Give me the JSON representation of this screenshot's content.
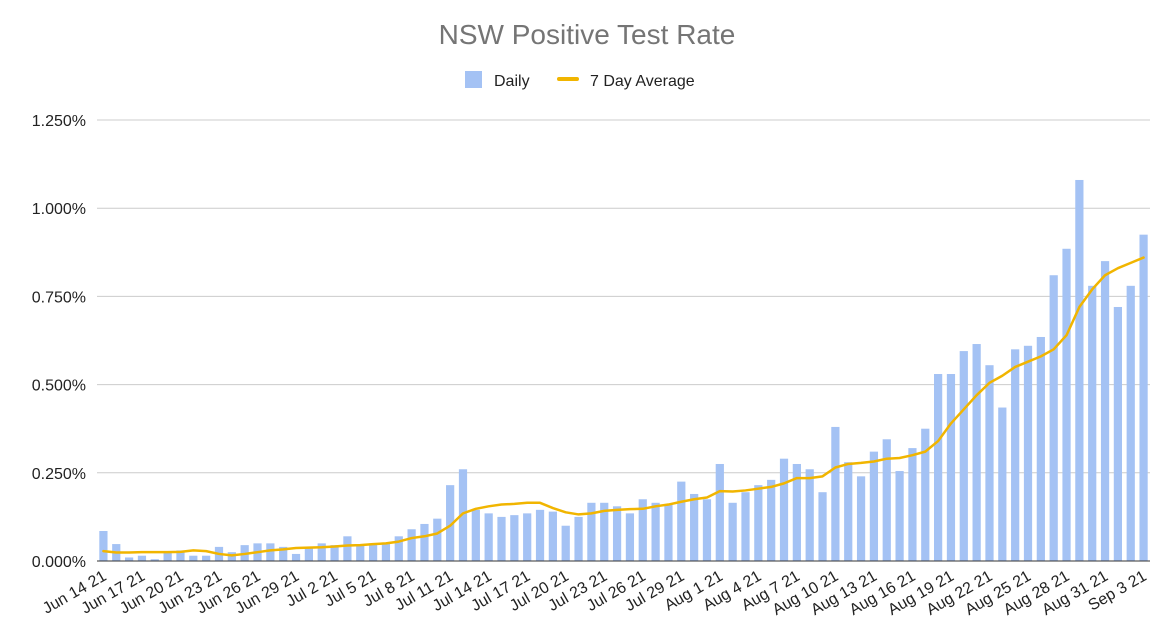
{
  "chart_data": {
    "type": "bar",
    "title": "NSW Positive Test Rate",
    "xlabel": "",
    "ylabel": "",
    "ylim": [
      0,
      1.25
    ],
    "yticks": [
      "0.000%",
      "0.250%",
      "0.500%",
      "0.750%",
      "1.000%",
      "1.250%"
    ],
    "ytick_values": [
      0,
      0.25,
      0.5,
      0.75,
      1.0,
      1.25
    ],
    "grid": true,
    "legend_position": "top-center",
    "colors": {
      "daily": "#a4c2f4",
      "avg": "#f1b500",
      "grid": "#cccccc",
      "axis": "#333333"
    },
    "categories": [
      "Jun 14 21",
      "Jun 15 21",
      "Jun 16 21",
      "Jun 17 21",
      "Jun 18 21",
      "Jun 19 21",
      "Jun 20 21",
      "Jun 21 21",
      "Jun 22 21",
      "Jun 23 21",
      "Jun 24 21",
      "Jun 25 21",
      "Jun 26 21",
      "Jun 27 21",
      "Jun 28 21",
      "Jun 29 21",
      "Jun 30 21",
      "Jul 1 21",
      "Jul 2 21",
      "Jul 3 21",
      "Jul 4 21",
      "Jul 5 21",
      "Jul 6 21",
      "Jul 7 21",
      "Jul 8 21",
      "Jul 9 21",
      "Jul 10 21",
      "Jul 11 21",
      "Jul 12 21",
      "Jul 13 21",
      "Jul 14 21",
      "Jul 15 21",
      "Jul 16 21",
      "Jul 17 21",
      "Jul 18 21",
      "Jul 19 21",
      "Jul 20 21",
      "Jul 21 21",
      "Jul 22 21",
      "Jul 23 21",
      "Jul 24 21",
      "Jul 25 21",
      "Jul 26 21",
      "Jul 27 21",
      "Jul 28 21",
      "Jul 29 21",
      "Jul 30 21",
      "Jul 31 21",
      "Aug 1 21",
      "Aug 2 21",
      "Aug 3 21",
      "Aug 4 21",
      "Aug 5 21",
      "Aug 6 21",
      "Aug 7 21",
      "Aug 8 21",
      "Aug 9 21",
      "Aug 10 21",
      "Aug 11 21",
      "Aug 12 21",
      "Aug 13 21",
      "Aug 14 21",
      "Aug 15 21",
      "Aug 16 21",
      "Aug 17 21",
      "Aug 18 21",
      "Aug 19 21",
      "Aug 20 21",
      "Aug 21 21",
      "Aug 22 21",
      "Aug 23 21",
      "Aug 24 21",
      "Aug 25 21",
      "Aug 26 21",
      "Aug 27 21",
      "Aug 28 21",
      "Aug 29 21",
      "Aug 30 21",
      "Aug 31 21",
      "Sep 1 21",
      "Sep 2 21",
      "Sep 3 21"
    ],
    "x_tick_labels": [
      "Jun 14 21",
      "Jun 17 21",
      "Jun 20 21",
      "Jun 23 21",
      "Jun 26 21",
      "Jun 29 21",
      "Jul 2 21",
      "Jul 5 21",
      "Jul 8 21",
      "Jul 11 21",
      "Jul 14 21",
      "Jul 17 21",
      "Jul 20 21",
      "Jul 23 21",
      "Jul 26 21",
      "Jul 29 21",
      "Aug 1 21",
      "Aug 4 21",
      "Aug 7 21",
      "Aug 10 21",
      "Aug 13 21",
      "Aug 16 21",
      "Aug 19 21",
      "Aug 22 21",
      "Aug 25 21",
      "Aug 28 21",
      "Aug 31 21",
      "Sep 3 21"
    ],
    "series": [
      {
        "name": "Daily",
        "type": "bar",
        "values": [
          0.085,
          0.048,
          0.01,
          0.015,
          0.005,
          0.025,
          0.03,
          0.015,
          0.015,
          0.04,
          0.025,
          0.045,
          0.05,
          0.05,
          0.04,
          0.02,
          0.04,
          0.05,
          0.045,
          0.07,
          0.045,
          0.05,
          0.05,
          0.07,
          0.09,
          0.105,
          0.12,
          0.215,
          0.26,
          0.145,
          0.135,
          0.125,
          0.13,
          0.135,
          0.145,
          0.14,
          0.1,
          0.125,
          0.165,
          0.165,
          0.155,
          0.135,
          0.175,
          0.165,
          0.16,
          0.225,
          0.19,
          0.175,
          0.275,
          0.165,
          0.195,
          0.215,
          0.23,
          0.29,
          0.275,
          0.26,
          0.195,
          0.38,
          0.28,
          0.24,
          0.31,
          0.345,
          0.255,
          0.32,
          0.375,
          0.53,
          0.53,
          0.595,
          0.615,
          0.555,
          0.435,
          0.6,
          0.61,
          0.635,
          0.81,
          0.885,
          1.08,
          0.78,
          0.85,
          0.72,
          0.78,
          0.925
        ]
      },
      {
        "name": "7 Day Average",
        "type": "line",
        "values": [
          0.028,
          0.024,
          0.024,
          0.025,
          0.025,
          0.025,
          0.026,
          0.03,
          0.028,
          0.02,
          0.016,
          0.02,
          0.025,
          0.03,
          0.033,
          0.037,
          0.038,
          0.039,
          0.041,
          0.044,
          0.045,
          0.048,
          0.05,
          0.055,
          0.065,
          0.07,
          0.078,
          0.1,
          0.135,
          0.148,
          0.155,
          0.16,
          0.162,
          0.165,
          0.165,
          0.15,
          0.138,
          0.132,
          0.135,
          0.142,
          0.145,
          0.147,
          0.148,
          0.155,
          0.16,
          0.168,
          0.175,
          0.18,
          0.198,
          0.197,
          0.2,
          0.205,
          0.21,
          0.22,
          0.235,
          0.235,
          0.24,
          0.265,
          0.275,
          0.278,
          0.282,
          0.29,
          0.292,
          0.3,
          0.31,
          0.34,
          0.39,
          0.43,
          0.47,
          0.505,
          0.525,
          0.55,
          0.565,
          0.58,
          0.6,
          0.64,
          0.72,
          0.77,
          0.81,
          0.83,
          0.845,
          0.86
        ]
      }
    ]
  }
}
